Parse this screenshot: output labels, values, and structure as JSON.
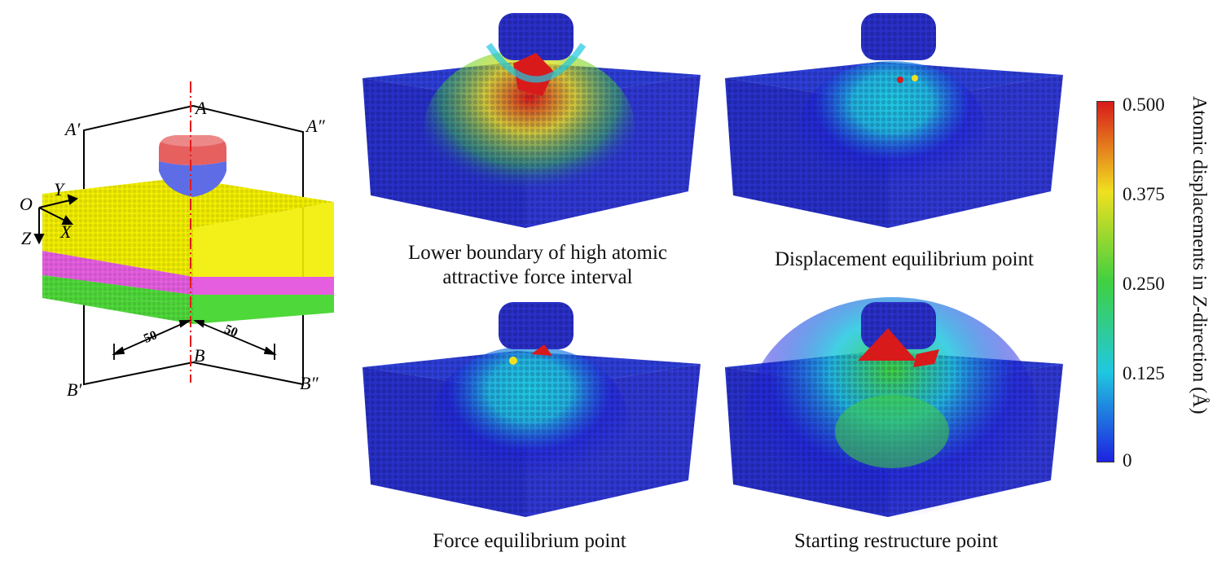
{
  "schematic": {
    "labels": {
      "A": "A",
      "A_prime": "A′",
      "A_double_prime": "A″",
      "B": "B",
      "B_prime": "B′",
      "B_double_prime": "B″",
      "O": "O",
      "X": "X",
      "Y": "Y",
      "Z": "Z"
    },
    "dimensions": {
      "left": "50",
      "right": "50"
    },
    "colors": {
      "top_layer": "#f2ee00",
      "middle_layer": "#e55ee0",
      "bottom_layer": "#4fd83a",
      "indenter_top": "#e66060",
      "indenter_bottom": "#5e6de6",
      "center_line": "#e41b1b"
    }
  },
  "panels": [
    {
      "caption": "Lower boundary of high atomic attractive force interval"
    },
    {
      "caption": "Displacement equilibrium point"
    },
    {
      "caption": "Force equilibrium point"
    },
    {
      "caption": "Starting restructure point"
    }
  ],
  "colorbar": {
    "title_parts": [
      "Atomic displacements in ",
      "Z",
      "-direction (Å)"
    ],
    "ticks": [
      "0.500",
      "0.375",
      "0.250",
      "0.125",
      "0"
    ],
    "colors": [
      "#d81a1a",
      "#f0e020",
      "#40d040",
      "#20c8e0",
      "#1e22e0"
    ]
  }
}
